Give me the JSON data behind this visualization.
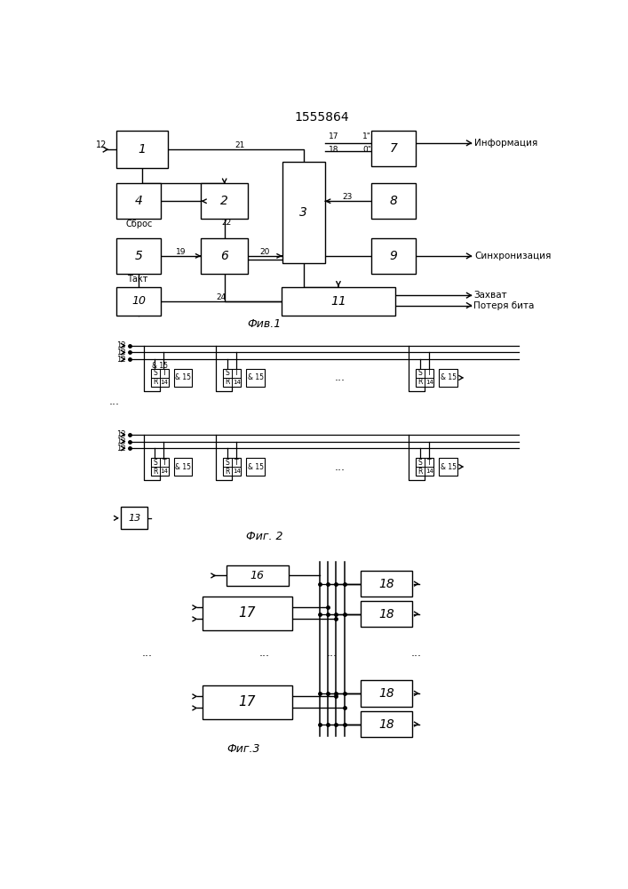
{
  "title": "1555864",
  "fig1_label": "Фив.1",
  "fig2_label": "Фиг. 2",
  "fig3_label": "Фиг.3",
  "background": "#ffffff",
  "lc": "#000000"
}
